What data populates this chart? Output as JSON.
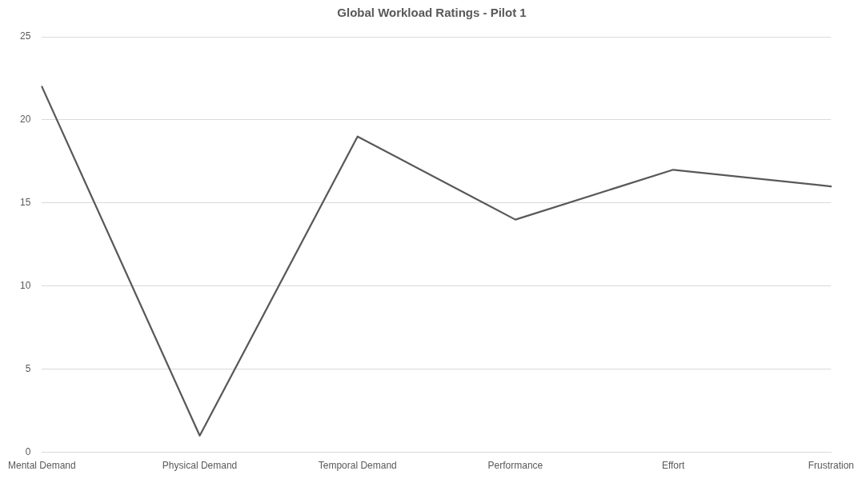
{
  "chart_data": {
    "type": "line",
    "title": "Global Workload Ratings - Pilot 1",
    "categories": [
      "Mental Demand",
      "Physical Demand",
      "Temporal Demand",
      "Performance",
      "Effort",
      "Frustration"
    ],
    "series": [
      {
        "color": "#595959",
        "values": [
          22,
          1,
          19,
          14,
          17,
          16
        ]
      }
    ],
    "ylim": [
      0,
      25
    ],
    "yticks": [
      0,
      5,
      10,
      15,
      20,
      25
    ],
    "grid": "y",
    "legend": false,
    "marker": "none",
    "line_style": "solid"
  }
}
